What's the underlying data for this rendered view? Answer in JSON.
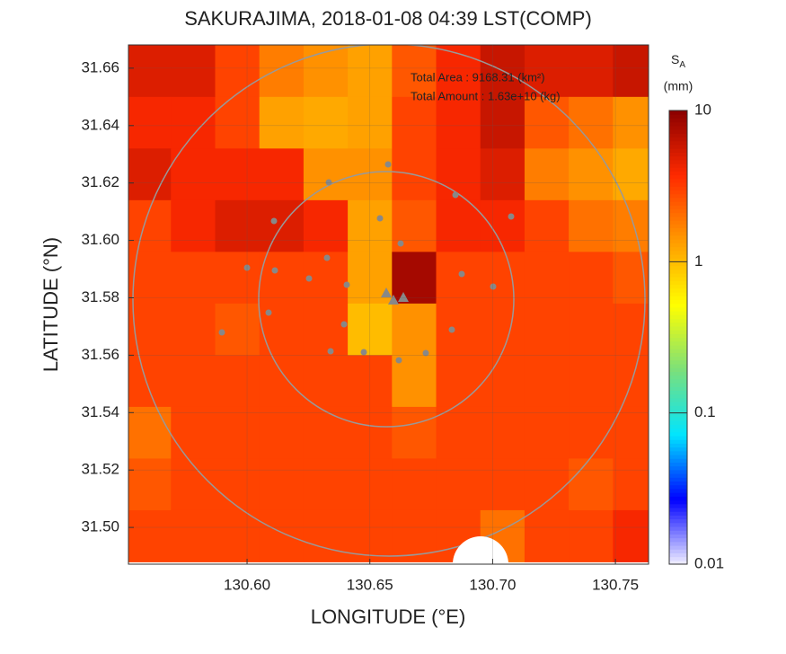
{
  "chart_data": {
    "type": "heatmap",
    "title": "SAKURAJIMA, 2018-01-08 04:39 LST(COMP)",
    "x_label": "LONGITUDE (°E)",
    "y_label": "LATITUDE (°N)",
    "annotations": [
      "Total Area   : 9168.31 (km²)",
      "Total Amount : 1.63e+10 (kg)"
    ],
    "colorbar_label": {
      "symbol": "S",
      "subscript": "A",
      "unit": "(mm)"
    },
    "x": [
      130.56,
      130.578,
      130.596,
      130.614,
      130.632,
      130.65,
      130.668,
      130.686,
      130.704,
      130.722,
      130.74,
      130.758
    ],
    "y": [
      31.659,
      31.641,
      31.623,
      31.605,
      31.587,
      31.569,
      31.551,
      31.533,
      31.515,
      31.497
    ],
    "z": [
      [
        5,
        5,
        3,
        1.8,
        1.5,
        1.3,
        2.5,
        4,
        6,
        5,
        5,
        6
      ],
      [
        4,
        4,
        3,
        1.3,
        1.2,
        1.3,
        3,
        4,
        6,
        2.5,
        2,
        1.5
      ],
      [
        5,
        4,
        4,
        4,
        1.5,
        1.5,
        3,
        4,
        5,
        1.8,
        1.5,
        1.2
      ],
      [
        3,
        4,
        5,
        5,
        4,
        1.3,
        2.5,
        4,
        4,
        3,
        2,
        1.8
      ],
      [
        3,
        3,
        3,
        3,
        3,
        1.3,
        8,
        3,
        3,
        3,
        3,
        2.5
      ],
      [
        3,
        3,
        2.5,
        3,
        3,
        1,
        1.5,
        3,
        3,
        3,
        3,
        3
      ],
      [
        3,
        3,
        3,
        3,
        3,
        3,
        1.5,
        3,
        3,
        3,
        3,
        3
      ],
      [
        2,
        3,
        3,
        3,
        3,
        3,
        2.5,
        3,
        3,
        3,
        3,
        3
      ],
      [
        2.5,
        3,
        3,
        3,
        3,
        3,
        3,
        3,
        3,
        3,
        2.5,
        3
      ],
      [
        3,
        3,
        3,
        3,
        3,
        3,
        3,
        3,
        2,
        3,
        3,
        4
      ]
    ],
    "xlim": [
      130.5517,
      130.7635
    ],
    "ylim": [
      31.4872,
      31.6681
    ],
    "xticks": [
      {
        "value": 130.6,
        "label": "130.60"
      },
      {
        "value": 130.65,
        "label": "130.65"
      },
      {
        "value": 130.7,
        "label": "130.70"
      },
      {
        "value": 130.75,
        "label": "130.75"
      }
    ],
    "yticks": [
      {
        "value": 31.5,
        "label": "31.50"
      },
      {
        "value": 31.52,
        "label": "31.52"
      },
      {
        "value": 31.54,
        "label": "31.54"
      },
      {
        "value": 31.56,
        "label": "31.56"
      },
      {
        "value": 31.58,
        "label": "31.58"
      },
      {
        "value": 31.6,
        "label": "31.60"
      },
      {
        "value": 31.62,
        "label": "31.62"
      },
      {
        "value": 31.64,
        "label": "31.64"
      },
      {
        "value": 31.66,
        "label": "31.66"
      }
    ],
    "clim": [
      0.01,
      10
    ],
    "cticks": [
      0.01,
      0.1,
      1,
      10
    ],
    "color_log": true,
    "colormap": [
      "#f2f0ff",
      "#0000ff",
      "#00e5ff",
      "#7be07b",
      "#ffff00",
      "#ff9a00",
      "#ff2a00",
      "#8b0000"
    ],
    "grid": true
  }
}
